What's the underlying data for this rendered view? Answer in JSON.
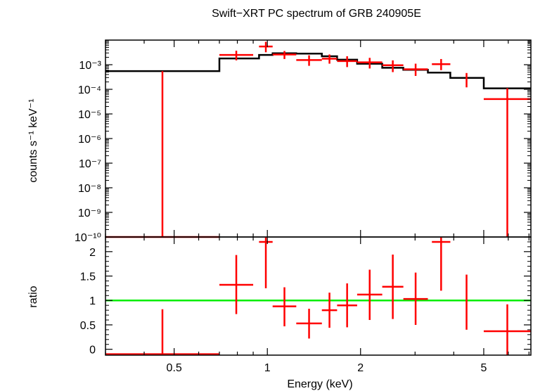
{
  "chart_data": {
    "type": "line",
    "title": "Swift−XRT PC spectrum of GRB 240905E",
    "xlabel": "Energy (keV)",
    "xscale": "log",
    "xlim": [
      0.3,
      7.1
    ],
    "x_ticks": [
      {
        "value": 0.5,
        "label": "0.5"
      },
      {
        "value": 1,
        "label": "1"
      },
      {
        "value": 2,
        "label": "2"
      },
      {
        "value": 5,
        "label": "5"
      }
    ],
    "x_minor_ticks": [
      0.3,
      0.4,
      0.6,
      0.7,
      0.8,
      0.9,
      3,
      4,
      6,
      7
    ],
    "colors": {
      "data": "#ff0000",
      "model": "#000000",
      "unity": "#00ee00",
      "axes": "#000000"
    },
    "panels": [
      {
        "id": "spectrum",
        "ylabel": "counts s⁻¹ keV⁻¹",
        "yscale": "log",
        "ylim": [
          1e-10,
          0.01
        ],
        "y_ticks": [
          {
            "value": 0.001,
            "label": "10⁻³"
          },
          {
            "value": 0.0001,
            "label": "10⁻⁴"
          },
          {
            "value": 1e-05,
            "label": "10⁻⁵"
          },
          {
            "value": 1e-06,
            "label": "10⁻⁶"
          },
          {
            "value": 1e-07,
            "label": "10⁻⁷"
          },
          {
            "value": 1e-08,
            "label": "10⁻⁸"
          },
          {
            "value": 1e-09,
            "label": "10⁻⁹"
          },
          {
            "value": 1e-10,
            "label": "10⁻¹⁰"
          }
        ],
        "data_points": [
          {
            "xlo": 0.3,
            "xhi": 0.7,
            "y": 1e-11,
            "ylo": 1e-11,
            "yhi": 0.00055
          },
          {
            "xlo": 0.7,
            "xhi": 0.9,
            "y": 0.0025,
            "ylo": 0.0015,
            "yhi": 0.0037
          },
          {
            "xlo": 0.94,
            "xhi": 1.04,
            "y": 0.0055,
            "ylo": 0.0032,
            "yhi": 0.0085
          },
          {
            "xlo": 1.04,
            "xhi": 1.24,
            "y": 0.0026,
            "ylo": 0.0017,
            "yhi": 0.0036
          },
          {
            "xlo": 1.24,
            "xhi": 1.5,
            "y": 0.00155,
            "ylo": 0.0009,
            "yhi": 0.0024
          },
          {
            "xlo": 1.5,
            "xhi": 1.68,
            "y": 0.00175,
            "ylo": 0.0011,
            "yhi": 0.0026
          },
          {
            "xlo": 1.68,
            "xhi": 1.95,
            "y": 0.0014,
            "ylo": 0.0008,
            "yhi": 0.0022
          },
          {
            "xlo": 1.95,
            "xhi": 2.35,
            "y": 0.00125,
            "ylo": 0.0007,
            "yhi": 0.0019
          },
          {
            "xlo": 2.35,
            "xhi": 2.75,
            "y": 0.00095,
            "ylo": 0.0005,
            "yhi": 0.0015
          },
          {
            "xlo": 2.75,
            "xhi": 3.3,
            "y": 0.00065,
            "ylo": 0.00035,
            "yhi": 0.0011
          },
          {
            "xlo": 3.4,
            "xhi": 3.9,
            "y": 0.00105,
            "ylo": 0.0006,
            "yhi": 0.0017
          },
          {
            "xlo": 4.38,
            "xhi": 4.42,
            "y": 0.00028,
            "ylo": 0.00012,
            "yhi": 0.00046
          },
          {
            "xlo": 5,
            "xhi": 7.1,
            "y": 4e-05,
            "ylo": 1e-11,
            "yhi": 0.00011
          }
        ],
        "model_steps": [
          {
            "xlo": 0.3,
            "xhi": 0.7,
            "y": 0.00055
          },
          {
            "xlo": 0.7,
            "xhi": 0.94,
            "y": 0.0018
          },
          {
            "xlo": 0.94,
            "xhi": 1.04,
            "y": 0.0025
          },
          {
            "xlo": 1.04,
            "xhi": 1.24,
            "y": 0.0029
          },
          {
            "xlo": 1.24,
            "xhi": 1.5,
            "y": 0.0028
          },
          {
            "xlo": 1.5,
            "xhi": 1.68,
            "y": 0.0022
          },
          {
            "xlo": 1.68,
            "xhi": 1.95,
            "y": 0.0016
          },
          {
            "xlo": 1.95,
            "xhi": 2.35,
            "y": 0.0011
          },
          {
            "xlo": 2.35,
            "xhi": 2.75,
            "y": 0.00075
          },
          {
            "xlo": 2.75,
            "xhi": 3.3,
            "y": 0.00062
          },
          {
            "xlo": 3.3,
            "xhi": 3.9,
            "y": 0.00048
          },
          {
            "xlo": 3.9,
            "xhi": 5,
            "y": 0.00029
          },
          {
            "xlo": 5,
            "xhi": 7.1,
            "y": 0.00011
          }
        ]
      },
      {
        "id": "ratio",
        "ylabel": "ratio",
        "yscale": "linear",
        "ylim": [
          -0.12,
          2.3
        ],
        "y_ticks": [
          {
            "value": 0,
            "label": "0"
          },
          {
            "value": 0.5,
            "label": "0.5"
          },
          {
            "value": 1,
            "label": "1"
          },
          {
            "value": 1.5,
            "label": "1.5"
          },
          {
            "value": 2,
            "label": "2"
          }
        ],
        "unity_line": 1,
        "data_points": [
          {
            "xlo": 0.3,
            "xhi": 0.7,
            "y": -0.1,
            "ylo": -0.12,
            "yhi": 0.82
          },
          {
            "xlo": 0.7,
            "xhi": 0.9,
            "y": 1.32,
            "ylo": 0.72,
            "yhi": 1.93
          },
          {
            "xlo": 0.94,
            "xhi": 1.04,
            "y": 2.2,
            "ylo": 1.25,
            "yhi": 2.3
          },
          {
            "xlo": 1.04,
            "xhi": 1.24,
            "y": 0.88,
            "ylo": 0.47,
            "yhi": 1.27
          },
          {
            "xlo": 1.24,
            "xhi": 1.5,
            "y": 0.53,
            "ylo": 0.22,
            "yhi": 0.83
          },
          {
            "xlo": 1.5,
            "xhi": 1.68,
            "y": 0.8,
            "ylo": 0.44,
            "yhi": 1.16
          },
          {
            "xlo": 1.68,
            "xhi": 1.95,
            "y": 0.9,
            "ylo": 0.45,
            "yhi": 1.35
          },
          {
            "xlo": 1.95,
            "xhi": 2.35,
            "y": 1.12,
            "ylo": 0.6,
            "yhi": 1.63
          },
          {
            "xlo": 2.35,
            "xhi": 2.75,
            "y": 1.28,
            "ylo": 0.62,
            "yhi": 1.94
          },
          {
            "xlo": 2.75,
            "xhi": 3.3,
            "y": 1.03,
            "ylo": 0.5,
            "yhi": 1.57
          },
          {
            "xlo": 3.4,
            "xhi": 3.9,
            "y": 2.2,
            "ylo": 1.2,
            "yhi": 2.3
          },
          {
            "xlo": 4.38,
            "xhi": 4.42,
            "y": 0.95,
            "ylo": 0.4,
            "yhi": 1.53
          },
          {
            "xlo": 5,
            "xhi": 7.1,
            "y": 0.37,
            "ylo": -0.12,
            "yhi": 0.92
          }
        ]
      }
    ]
  }
}
